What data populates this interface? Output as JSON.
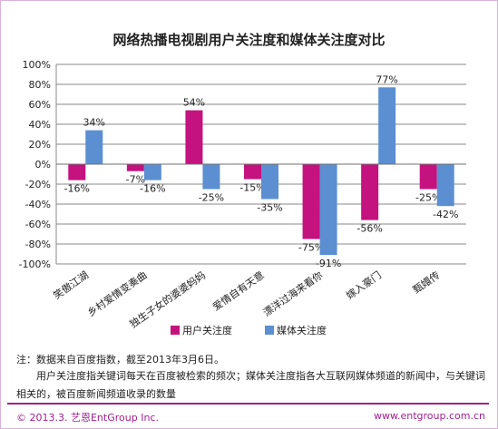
{
  "chart_data": {
    "type": "bar",
    "title": "网络热播电视剧用户关注度和媒体关注度对比",
    "categories": [
      "笑傲江湖",
      "乡村爱情变奏曲",
      "独生子女的婆婆妈妈",
      "爱情自有天意",
      "漂洋过海来看你",
      "嫁入豪门",
      "甄嬛传"
    ],
    "series": [
      {
        "name": "用户关注度",
        "color": "#c4127f",
        "values": [
          -16,
          -7,
          54,
          -15,
          -75,
          -56,
          -25
        ]
      },
      {
        "name": "媒体关注度",
        "color": "#5b8fd1",
        "values": [
          34,
          -16,
          -25,
          -35,
          -91,
          77,
          -42
        ]
      }
    ],
    "data_labels": {
      "user": [
        "-16%",
        "-7%",
        "54%",
        "-15%",
        "-75%",
        "-56%",
        "-25%"
      ],
      "media": [
        "34%",
        "-16%",
        "-25%",
        "-35%",
        "-91%",
        "77%",
        "-42%"
      ]
    },
    "y_ticks": [
      "100%",
      "80%",
      "60%",
      "40%",
      "20%",
      "0%",
      "-20%",
      "-40%",
      "-60%",
      "-80%",
      "-100%"
    ],
    "ylim": [
      -100,
      100
    ],
    "legend_placement": "bottom",
    "grid": true
  },
  "notes": {
    "line1": "注：数据来自百度指数，截至2013年3月6日。",
    "line2": "用户关注度指关键词每天在百度被检索的频次；媒体关注度指各大互联网媒体频道的新闻中，与关键词",
    "line3": "相关的，被百度新闻频道收录的数量"
  },
  "footer": {
    "copyright": "© 2013.3. 艺恩EntGroup Inc.",
    "website": "www.entgroup.com.cn"
  },
  "colors": {
    "accent": "#a01f8f"
  }
}
